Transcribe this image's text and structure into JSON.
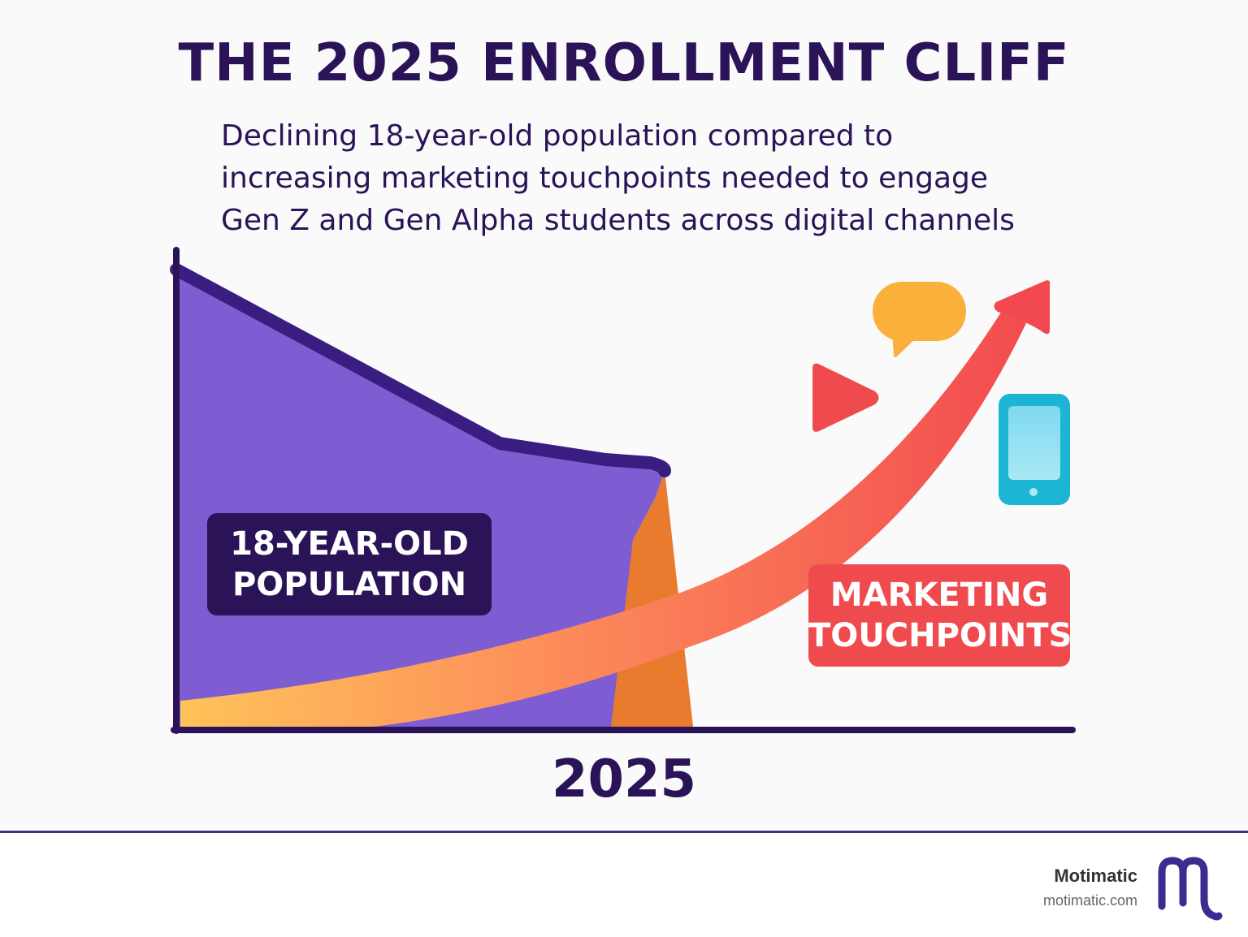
{
  "title": "THE 2025 ENROLLMENT CLIFF",
  "subtitle_lines": [
    "Declining 18-year-old population compared to",
    "increasing marketing touchpoints needed to engage",
    "Gen Z and Gen Alpha students across digital channels"
  ],
  "chart_data": {
    "type": "area",
    "x_tick_labels": [
      "2025"
    ],
    "y_axis": "no tick labels",
    "grid": false,
    "series": [
      {
        "name_lines": [
          "18-YEAR-OLD",
          "POPULATION"
        ],
        "kind": "area",
        "trend": "declining, then dropping off after 2025",
        "color": "#7e5cd1",
        "edge_color": "#3a1d80",
        "drop_color": "#e87b2e"
      },
      {
        "name_lines": [
          "MARKETING",
          "TOUCHPOINTS"
        ],
        "kind": "rising-arrow",
        "trend": "increasing",
        "gradient": [
          "#ffc35a",
          "#f2484f"
        ]
      }
    ],
    "icons": [
      {
        "name": "chat-bubble-icon",
        "color": "#fbb03b"
      },
      {
        "name": "video-play-icon",
        "color": "#ef4b4f"
      },
      {
        "name": "smartphone-icon",
        "color": "#1cb5d4"
      }
    ]
  },
  "footer": {
    "brand_name": "Motimatic",
    "brand_url": "motimatic.com",
    "logo_color": "#3f2a91"
  }
}
